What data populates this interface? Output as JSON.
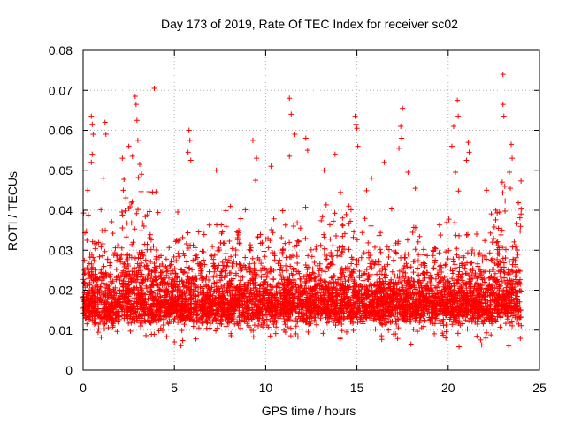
{
  "chart_data": {
    "type": "scatter",
    "title": "Day 173 of 2019, Rate Of TEC Index for receiver sc02",
    "xlabel": "GPS time / hours",
    "ylabel": "ROTI / TECUs",
    "xlim": [
      0,
      25
    ],
    "ylim": [
      0,
      0.08
    ],
    "x_ticks": [
      "0",
      "5",
      "10",
      "15",
      "20",
      "25"
    ],
    "y_ticks": [
      "0",
      "0.01",
      "0.02",
      "0.03",
      "0.04",
      "0.05",
      "0.06",
      "0.07",
      "0.08"
    ],
    "grid": true,
    "marker": "+",
    "series": [
      {
        "name": "ROTI",
        "color": "#ff0000",
        "x_range": [
          0,
          24
        ],
        "typical_range": [
          0.005,
          0.03
        ],
        "outliers": [
          {
            "x": 0.45,
            "y": 0.0635
          },
          {
            "x": 0.5,
            "y": 0.0615
          },
          {
            "x": 0.55,
            "y": 0.059
          },
          {
            "x": 0.5,
            "y": 0.054
          },
          {
            "x": 0.45,
            "y": 0.052
          },
          {
            "x": 0.25,
            "y": 0.045
          },
          {
            "x": 1.2,
            "y": 0.062
          },
          {
            "x": 1.25,
            "y": 0.059
          },
          {
            "x": 1.1,
            "y": 0.048
          },
          {
            "x": 2.15,
            "y": 0.053
          },
          {
            "x": 2.2,
            "y": 0.045
          },
          {
            "x": 2.5,
            "y": 0.056
          },
          {
            "x": 2.7,
            "y": 0.0535
          },
          {
            "x": 2.85,
            "y": 0.0685
          },
          {
            "x": 2.9,
            "y": 0.0665
          },
          {
            "x": 2.95,
            "y": 0.0625
          },
          {
            "x": 3.0,
            "y": 0.0575
          },
          {
            "x": 3.1,
            "y": 0.0515
          },
          {
            "x": 3.2,
            "y": 0.049
          },
          {
            "x": 3.9,
            "y": 0.0705
          },
          {
            "x": 3.8,
            "y": 0.0445
          },
          {
            "x": 5.8,
            "y": 0.06
          },
          {
            "x": 5.85,
            "y": 0.0575
          },
          {
            "x": 5.75,
            "y": 0.0545
          },
          {
            "x": 5.9,
            "y": 0.0525
          },
          {
            "x": 7.3,
            "y": 0.05
          },
          {
            "x": 9.3,
            "y": 0.0575
          },
          {
            "x": 9.5,
            "y": 0.053
          },
          {
            "x": 9.45,
            "y": 0.0475
          },
          {
            "x": 10.3,
            "y": 0.051
          },
          {
            "x": 11.3,
            "y": 0.068
          },
          {
            "x": 11.4,
            "y": 0.064
          },
          {
            "x": 11.6,
            "y": 0.059
          },
          {
            "x": 11.3,
            "y": 0.0535
          },
          {
            "x": 12.2,
            "y": 0.058
          },
          {
            "x": 12.3,
            "y": 0.055
          },
          {
            "x": 13.2,
            "y": 0.05
          },
          {
            "x": 13.8,
            "y": 0.054
          },
          {
            "x": 14.9,
            "y": 0.0635
          },
          {
            "x": 14.95,
            "y": 0.0615
          },
          {
            "x": 15.0,
            "y": 0.0605
          },
          {
            "x": 15.05,
            "y": 0.056
          },
          {
            "x": 15.8,
            "y": 0.048
          },
          {
            "x": 16.5,
            "y": 0.052
          },
          {
            "x": 17.5,
            "y": 0.0655
          },
          {
            "x": 17.4,
            "y": 0.061
          },
          {
            "x": 17.45,
            "y": 0.058
          },
          {
            "x": 17.3,
            "y": 0.0555
          },
          {
            "x": 17.8,
            "y": 0.0495
          },
          {
            "x": 18.2,
            "y": 0.0455
          },
          {
            "x": 20.3,
            "y": 0.061
          },
          {
            "x": 20.5,
            "y": 0.0675
          },
          {
            "x": 20.55,
            "y": 0.0635
          },
          {
            "x": 20.2,
            "y": 0.056
          },
          {
            "x": 20.4,
            "y": 0.0495
          },
          {
            "x": 21.1,
            "y": 0.057
          },
          {
            "x": 21.15,
            "y": 0.0545
          },
          {
            "x": 21.0,
            "y": 0.0525
          },
          {
            "x": 22.1,
            "y": 0.045
          },
          {
            "x": 23.0,
            "y": 0.074
          },
          {
            "x": 23.0,
            "y": 0.0665
          },
          {
            "x": 23.05,
            "y": 0.0635
          },
          {
            "x": 23.45,
            "y": 0.0565
          },
          {
            "x": 23.5,
            "y": 0.053
          },
          {
            "x": 23.35,
            "y": 0.0495
          },
          {
            "x": 23.1,
            "y": 0.046
          },
          {
            "x": 23.4,
            "y": 0.0455
          }
        ]
      }
    ]
  }
}
